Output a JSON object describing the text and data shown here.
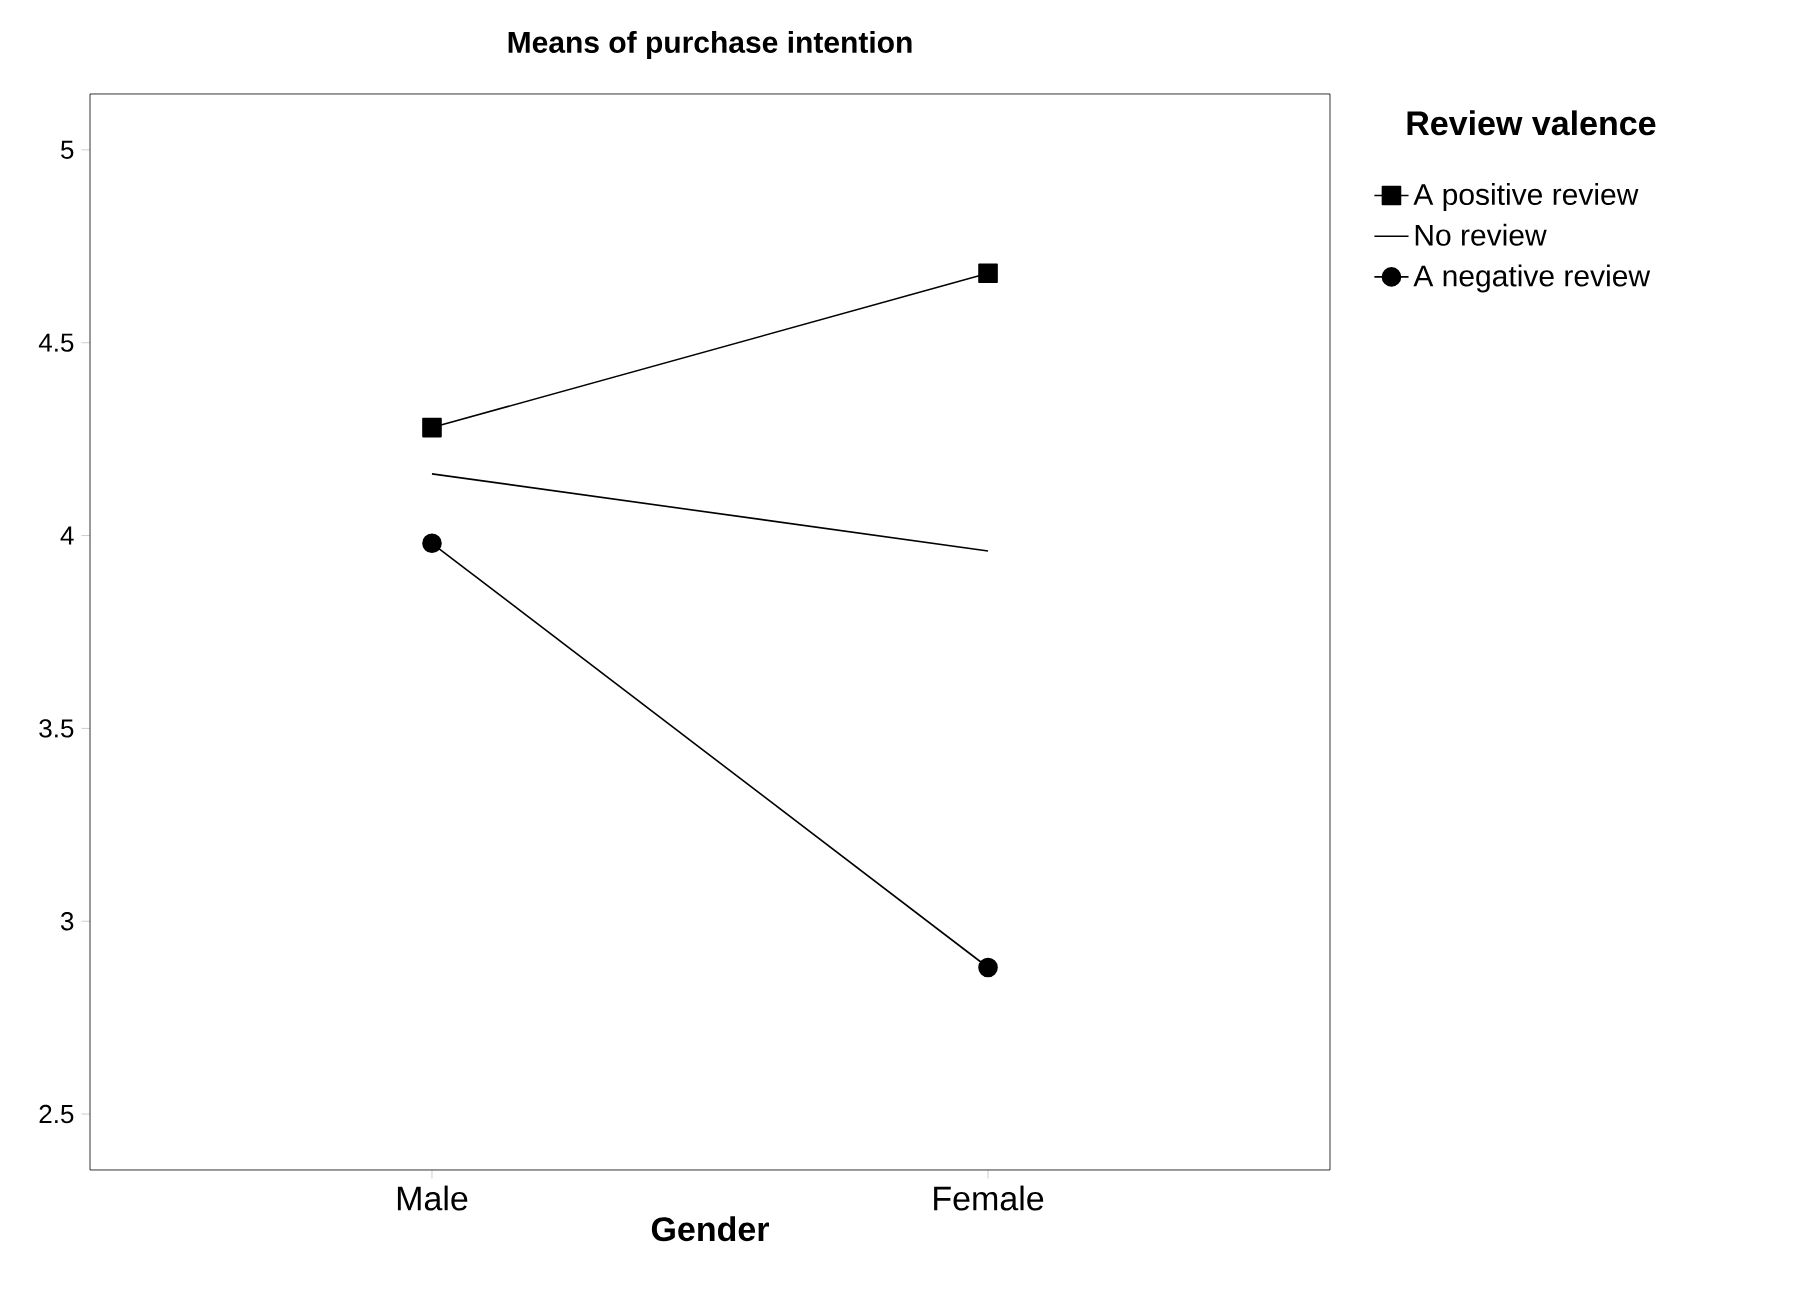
{
  "chart_data": {
    "type": "line",
    "title": "Means of purchase intention",
    "xlabel": "Gender",
    "legend_title": "Review valence",
    "categories": [
      "Male",
      "Female"
    ],
    "series": [
      {
        "name": "A positive review",
        "color": "#000000",
        "values": [
          4.28,
          4.68
        ],
        "marker": "square"
      },
      {
        "name": "No review",
        "color": "#000000",
        "values": [
          4.16,
          3.96
        ],
        "marker": "none"
      },
      {
        "name": "A negative review",
        "color": "#000000",
        "values": [
          3.98,
          2.88
        ],
        "marker": "circle"
      }
    ],
    "ylim": [
      2.355,
      5.145
    ],
    "yticks": [
      2.5,
      3,
      3.5,
      4,
      4.5,
      5
    ],
    "grid": false,
    "legend": "top right",
    "line_style": "solid"
  }
}
